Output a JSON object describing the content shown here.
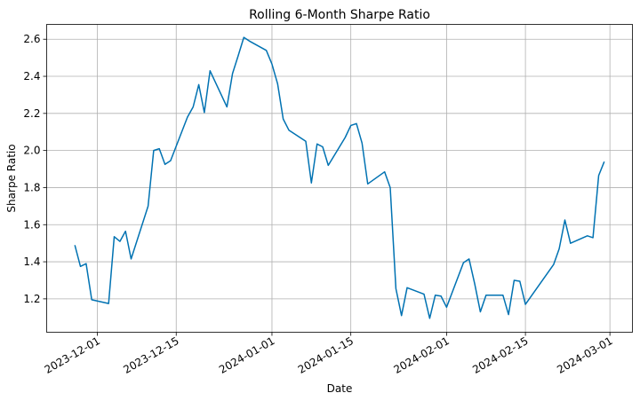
{
  "chart_data": {
    "type": "line",
    "title": "Rolling 6-Month Sharpe Ratio",
    "xlabel": "Date",
    "ylabel": "Sharpe Ratio",
    "grid": true,
    "line_color": "#0072b2",
    "xlim": [
      "2023-11-22",
      "2024-03-05"
    ],
    "ylim": [
      1.02,
      2.68
    ],
    "x_ticks": [
      "2023-12-01",
      "2023-12-15",
      "2024-01-01",
      "2024-01-15",
      "2024-02-01",
      "2024-02-15",
      "2024-03-01"
    ],
    "y_ticks": [
      1.2,
      1.4,
      1.6,
      1.8,
      2.0,
      2.2,
      2.4,
      2.6
    ],
    "y_tick_labels": [
      "1.2",
      "1.4",
      "1.6",
      "1.8",
      "2.0",
      "2.2",
      "2.4",
      "2.6"
    ],
    "series": [
      {
        "x": [
          "2023-11-27",
          "2023-11-28",
          "2023-11-29",
          "2023-11-30",
          "2023-12-03",
          "2023-12-04",
          "2023-12-05",
          "2023-12-06",
          "2023-12-07",
          "2023-12-10",
          "2023-12-11",
          "2023-12-12",
          "2023-12-13",
          "2023-12-14",
          "2023-12-17",
          "2023-12-18",
          "2023-12-19",
          "2023-12-20",
          "2023-12-21",
          "2023-12-24",
          "2023-12-25",
          "2023-12-26",
          "2023-12-27",
          "2023-12-28",
          "2023-12-31",
          "2024-01-01",
          "2024-01-02",
          "2024-01-03",
          "2024-01-04",
          "2024-01-07",
          "2024-01-08",
          "2024-01-09",
          "2024-01-10",
          "2024-01-11",
          "2024-01-14",
          "2024-01-15",
          "2024-01-16",
          "2024-01-17",
          "2024-01-18",
          "2024-01-21",
          "2024-01-22",
          "2024-01-23",
          "2024-01-24",
          "2024-01-25",
          "2024-01-28",
          "2024-01-29",
          "2024-01-30",
          "2024-01-31",
          "2024-02-01",
          "2024-02-04",
          "2024-02-05",
          "2024-02-06",
          "2024-02-07",
          "2024-02-08",
          "2024-02-11",
          "2024-02-12",
          "2024-02-13",
          "2024-02-14",
          "2024-02-15",
          "2024-02-20",
          "2024-02-21",
          "2024-02-22",
          "2024-02-23",
          "2024-02-26",
          "2024-02-27",
          "2024-02-28",
          "2024-02-29"
        ],
        "values": [
          1.49,
          1.375,
          1.39,
          1.195,
          1.175,
          1.535,
          1.51,
          1.565,
          1.415,
          1.7,
          2.0,
          2.01,
          1.925,
          1.945,
          2.18,
          2.235,
          2.355,
          2.205,
          2.43,
          2.235,
          2.415,
          2.51,
          2.61,
          2.59,
          2.54,
          2.465,
          2.36,
          2.17,
          2.11,
          2.05,
          1.825,
          2.035,
          2.02,
          1.92,
          2.07,
          2.135,
          2.145,
          2.04,
          1.82,
          1.885,
          1.8,
          1.255,
          1.11,
          1.26,
          1.225,
          1.095,
          1.22,
          1.215,
          1.155,
          1.395,
          1.415,
          1.28,
          1.13,
          1.22,
          1.22,
          1.115,
          1.3,
          1.295,
          1.17,
          1.385,
          1.47,
          1.625,
          1.5,
          1.54,
          1.53,
          1.865,
          1.94
        ]
      }
    ]
  }
}
